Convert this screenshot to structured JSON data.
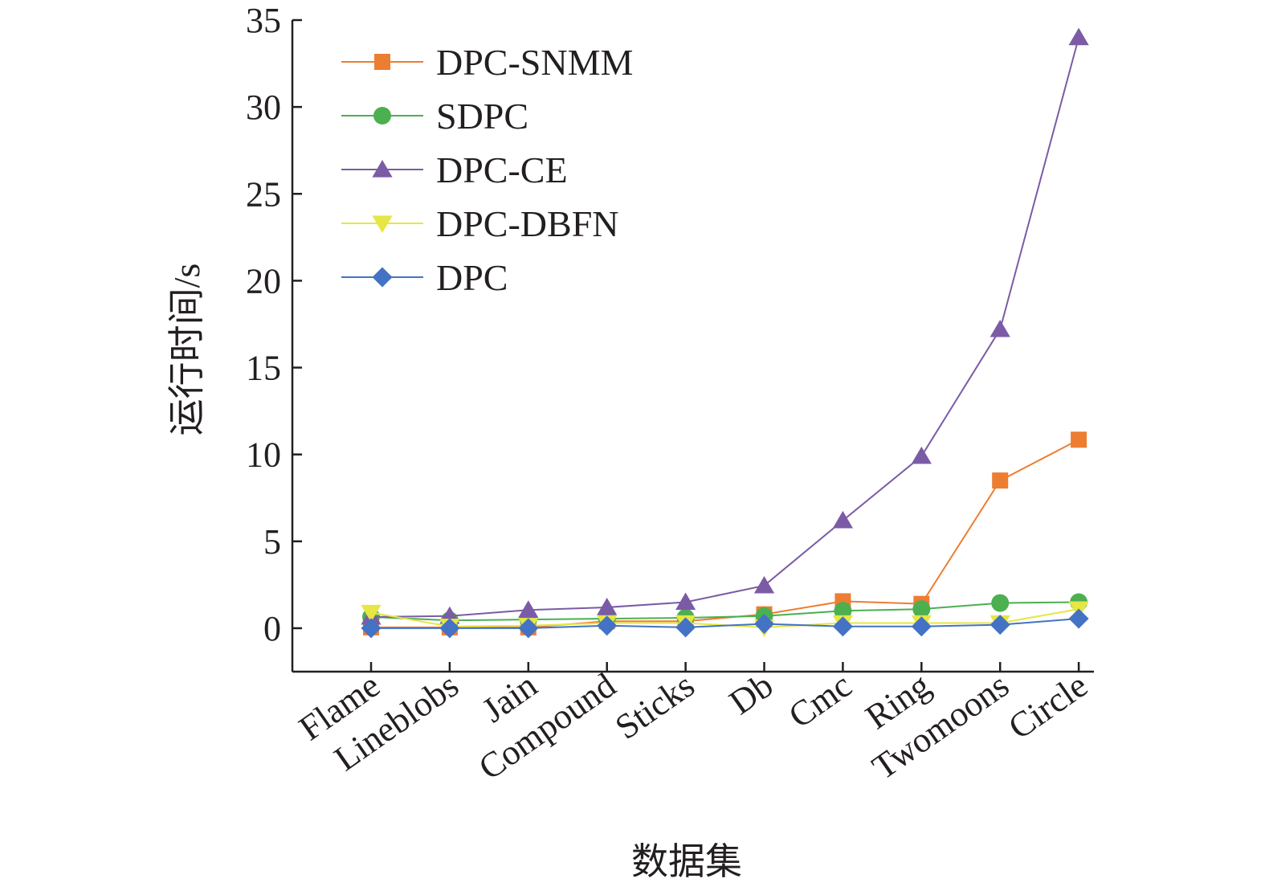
{
  "chart_data": {
    "type": "line",
    "title": "",
    "xlabel": "数据集",
    "ylabel": "运行时间/s",
    "ylim": [
      -2.5,
      35
    ],
    "yticks": [
      0,
      5,
      10,
      15,
      20,
      25,
      30,
      35
    ],
    "ytick_labels": [
      "0",
      "5",
      "10",
      "15",
      "20",
      "25",
      "30",
      "35"
    ],
    "grid": false,
    "legend_position": "top-left",
    "categories": [
      "Flame",
      "Lineblobs",
      "Jain",
      "Compound",
      "Sticks",
      "Db",
      "Cmc",
      "Ring",
      "Twomoons",
      "Circle"
    ],
    "series": [
      {
        "name": "DPC-SNMM",
        "marker": "square",
        "color": "#ed7d31",
        "values": [
          0.05,
          0.05,
          0.05,
          0.4,
          0.4,
          0.8,
          1.55,
          1.4,
          8.5,
          10.85
        ]
      },
      {
        "name": "SDPC",
        "marker": "circle",
        "color": "#4caf50",
        "values": [
          0.65,
          0.45,
          0.5,
          0.55,
          0.6,
          0.7,
          1.0,
          1.1,
          1.45,
          1.5
        ]
      },
      {
        "name": "DPC-CE",
        "marker": "triangle-up",
        "color": "#7b5ba6",
        "values": [
          0.65,
          0.7,
          1.05,
          1.2,
          1.5,
          2.45,
          6.2,
          9.9,
          17.2,
          34.0
        ]
      },
      {
        "name": "DPC-DBFN",
        "marker": "triangle-down",
        "color": "#e6e645",
        "values": [
          0.9,
          0.1,
          0.15,
          0.3,
          0.3,
          0.05,
          0.3,
          0.3,
          0.3,
          1.1
        ]
      },
      {
        "name": "DPC",
        "marker": "diamond",
        "color": "#4472c4",
        "values": [
          0.0,
          0.0,
          0.0,
          0.15,
          0.05,
          0.25,
          0.1,
          0.1,
          0.2,
          0.55
        ]
      }
    ]
  }
}
